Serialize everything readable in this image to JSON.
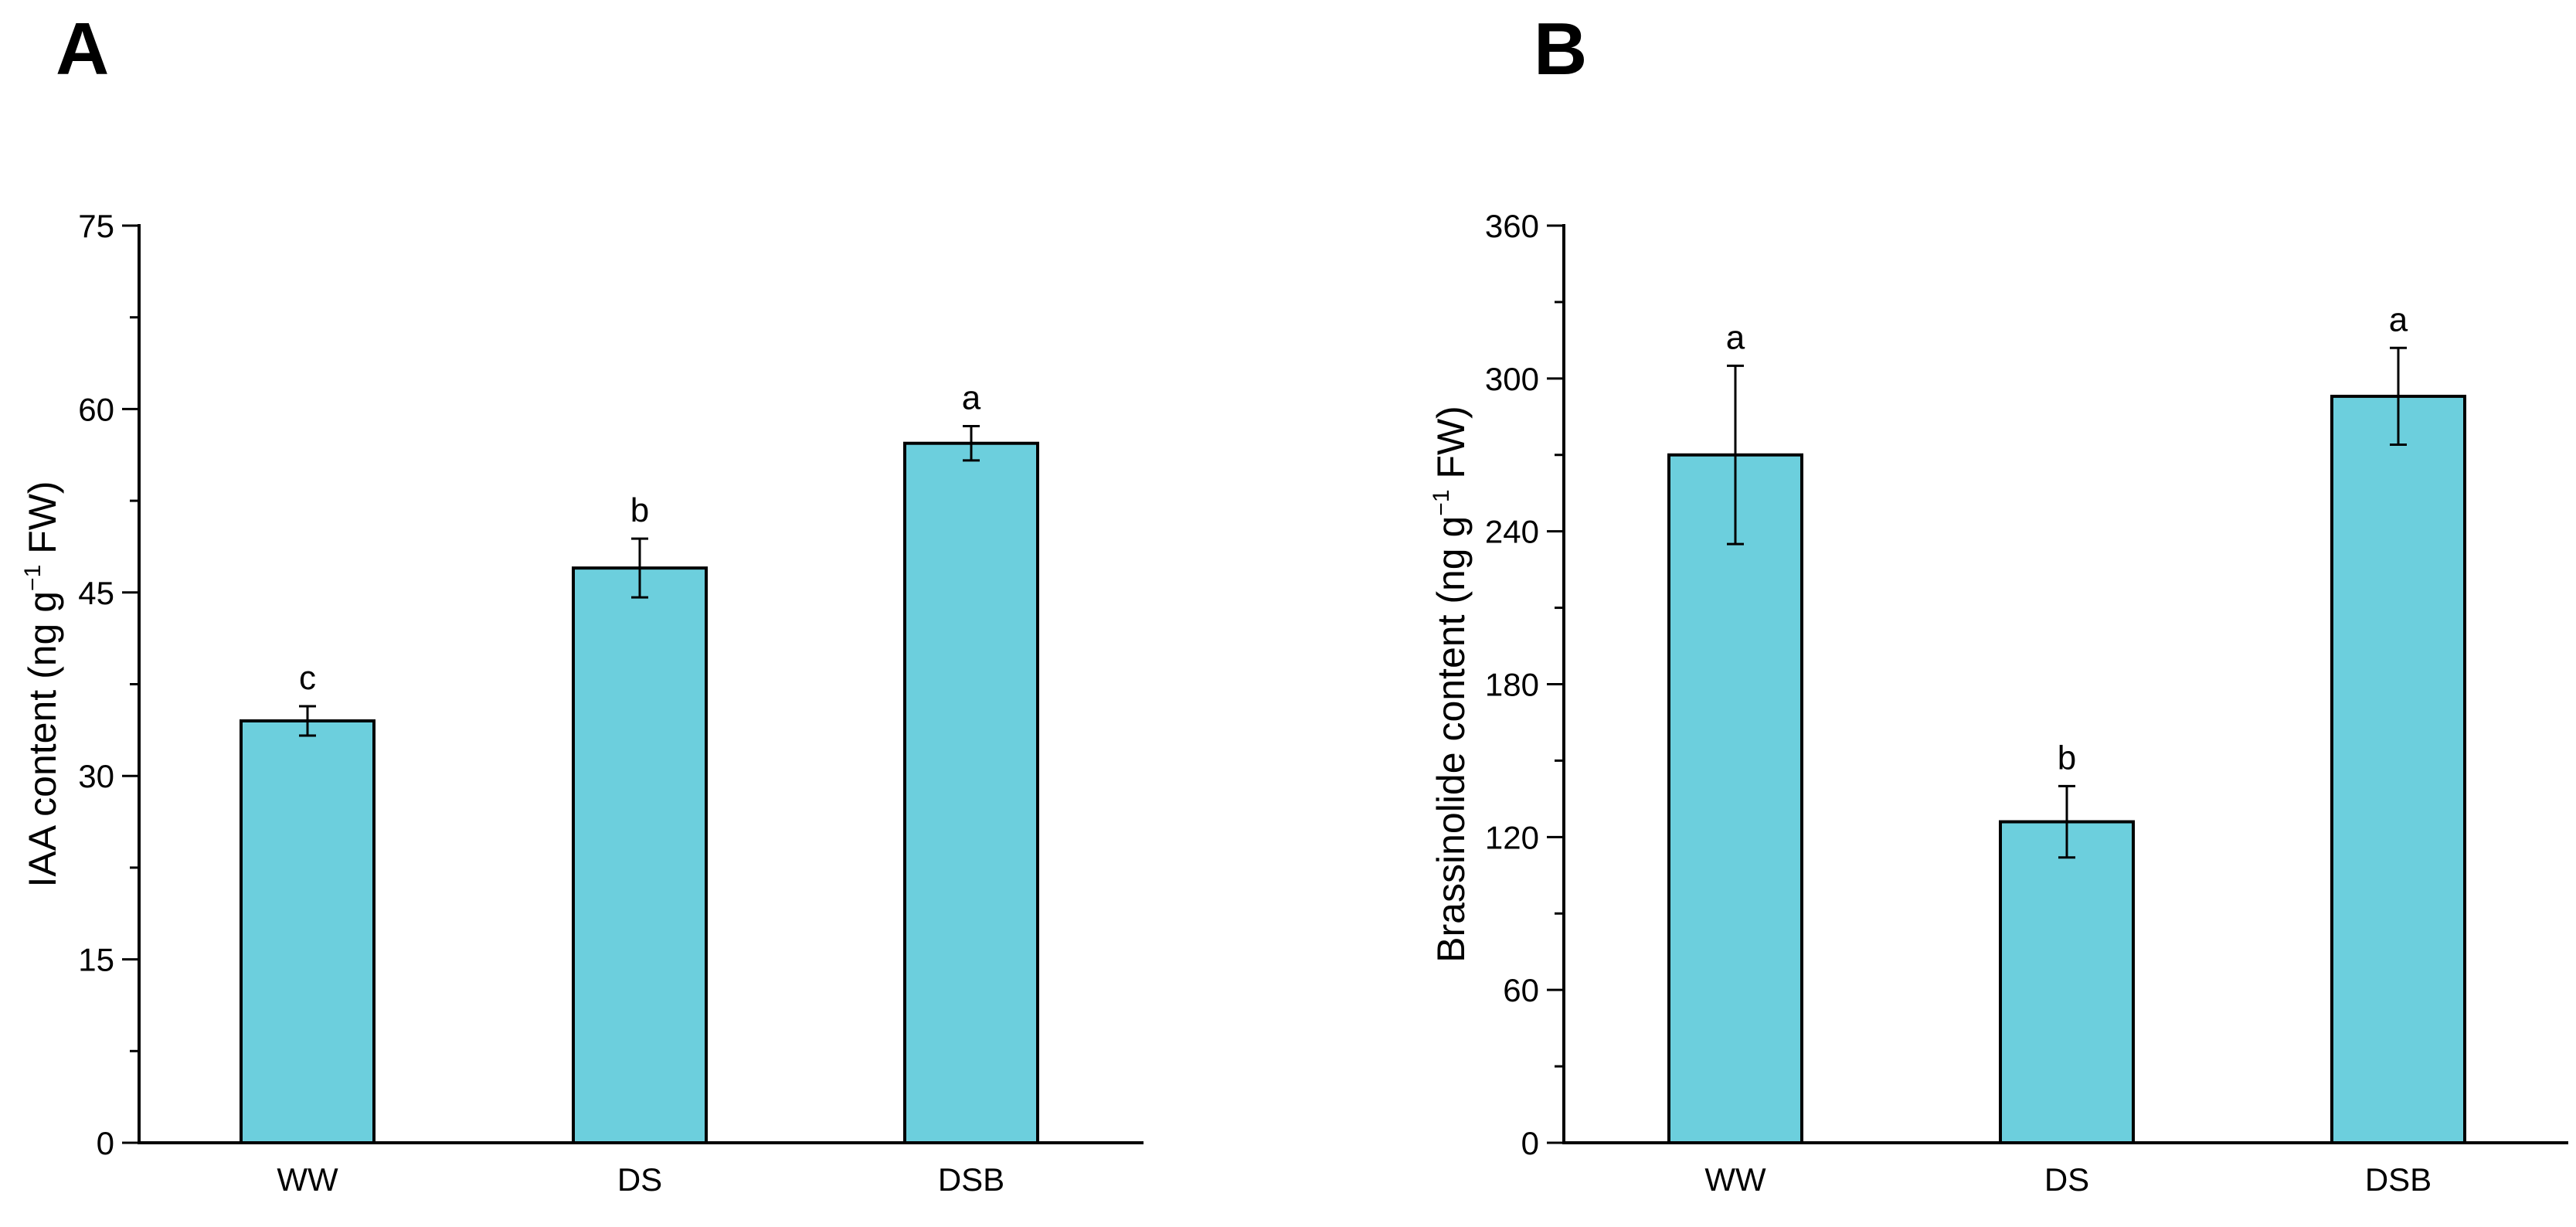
{
  "figure": {
    "bar_color": "#6ccfdd",
    "axis_color": "#000000"
  },
  "chart_data": [
    {
      "type": "bar",
      "panel_label": "A",
      "ylabel_main": "IAA content (ng g",
      "ylabel_sup": "−1",
      "ylabel_tail": " FW)",
      "xlabel": "",
      "ylim": [
        0,
        75
      ],
      "yticks": [
        0,
        15,
        30,
        45,
        60,
        75
      ],
      "categories": [
        "WW",
        "DS",
        "DSB"
      ],
      "values": [
        34.5,
        47.0,
        57.2
      ],
      "errors": [
        1.2,
        2.4,
        1.4
      ],
      "significance": [
        "c",
        "b",
        "a"
      ]
    },
    {
      "type": "bar",
      "panel_label": "B",
      "ylabel_main": "Brassinolide content (ng g",
      "ylabel_sup": "−1",
      "ylabel_tail": " FW)",
      "xlabel": "",
      "ylim": [
        0,
        360
      ],
      "yticks": [
        0,
        60,
        120,
        180,
        240,
        300,
        360
      ],
      "categories": [
        "WW",
        "DS",
        "DSB"
      ],
      "values": [
        270,
        126,
        293
      ],
      "errors": [
        35,
        14,
        19
      ],
      "significance": [
        "a",
        "b",
        "a"
      ]
    }
  ]
}
